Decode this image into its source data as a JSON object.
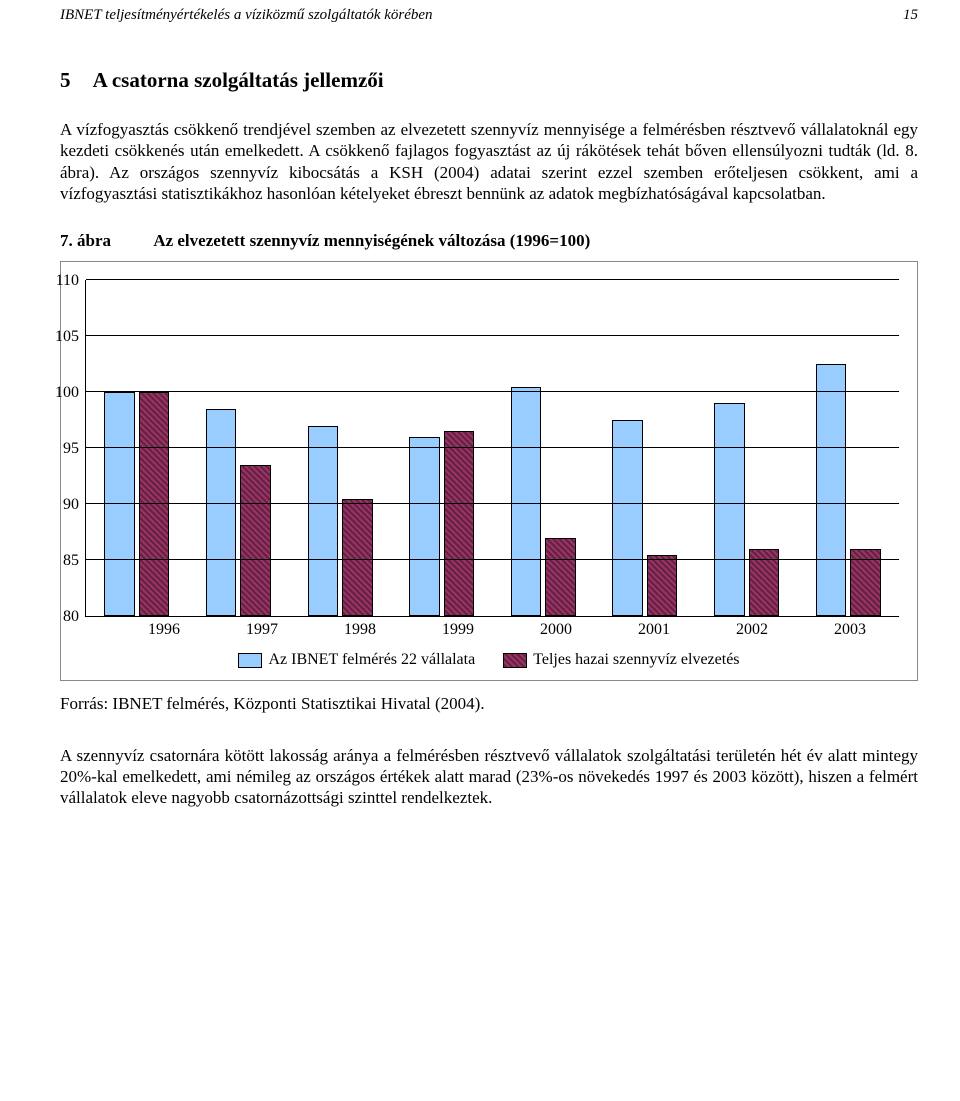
{
  "running_head": {
    "left": "IBNET teljesítményértékelés a víziközmű szolgáltatók körében",
    "page_number": "15"
  },
  "section": {
    "number": "5",
    "title": "A csatorna szolgáltatás jellemzői"
  },
  "paragraph_1": "A vízfogyasztás csökkenő trendjével szemben az elvezetett szennyvíz mennyisége a felmérésben résztvevő vállalatoknál egy kezdeti csökkenés után emelkedett. A csökkenő fajlagos fogyasztást az új rákötések tehát bőven ellensúlyozni tudták (ld. 8. ábra). Az országos szennyvíz kibocsátás a KSH (2004) adatai szerint ezzel szemben erőteljesen csökkent, ami a vízfogyasztási statisztikákhoz hasonlóan kételyeket ébreszt bennünk az adatok megbízhatóságával kapcsolatban.",
  "figure": {
    "number": "7. ábra",
    "title": "Az elvezetett szennyvíz mennyiségének változása (1996=100)"
  },
  "chart": {
    "type": "bar",
    "ylim": [
      80,
      110
    ],
    "ytick_step": 5,
    "yticks": [
      "110",
      "105",
      "100",
      "95",
      "90",
      "85",
      "80"
    ],
    "categories": [
      "1996",
      "1997",
      "1998",
      "1999",
      "2000",
      "2001",
      "2002",
      "2003"
    ],
    "series": [
      {
        "label": "Az IBNET felmérés 22 vállalata",
        "color": "#99ccff",
        "values": [
          100,
          98.5,
          97,
          96,
          100.5,
          97.5,
          99,
          102.5
        ]
      },
      {
        "label": "Teljes hazai szennyvíz elvezetés",
        "color": "#993366",
        "values": [
          100,
          93.5,
          90.5,
          96.5,
          87,
          85.5,
          86,
          86
        ]
      }
    ],
    "background_color": "#ffffff",
    "grid_color": "#000000",
    "bar_border_color": "#000000"
  },
  "source_line": "Forrás: IBNET felmérés, Központi Statisztikai Hivatal (2004).",
  "paragraph_2": "A szennyvíz csatornára kötött lakosság aránya a felmérésben résztvevő vállalatok szolgáltatási területén hét év alatt mintegy 20%-kal emelkedett, ami némileg az országos értékek alatt marad (23%-os növekedés 1997 és 2003 között), hiszen a felmért vállalatok eleve nagyobb csatornázottsági szinttel rendelkeztek."
}
